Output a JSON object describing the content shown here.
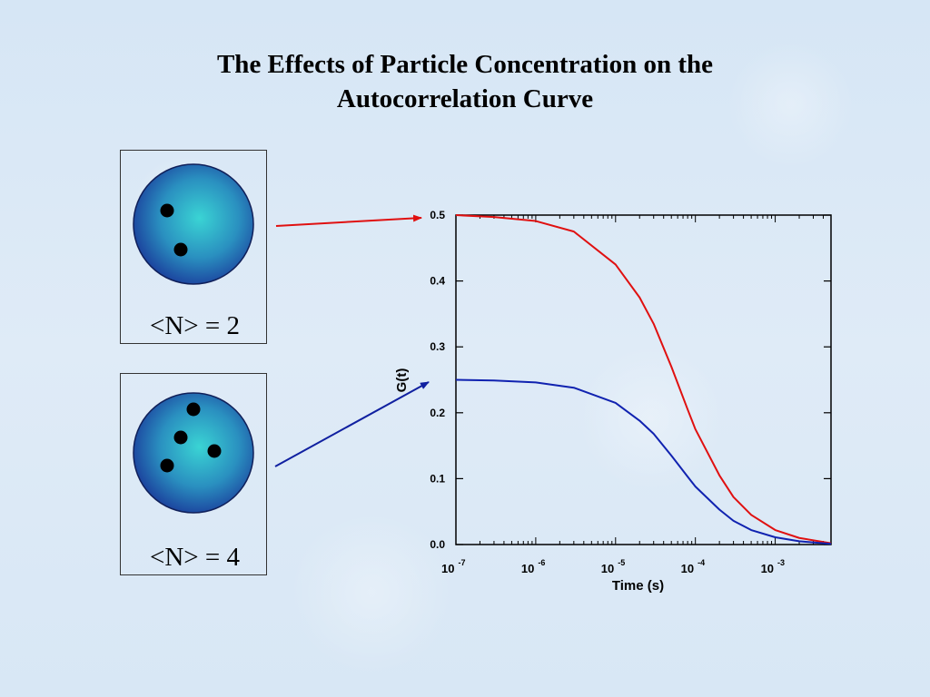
{
  "slide": {
    "title_line1": "The Effects of Particle Concentration on the",
    "title_line2": "Autocorrelation Curve"
  },
  "panels": [
    {
      "label": "<N> = 2",
      "particles": 2,
      "arrow_color": "#e01010"
    },
    {
      "label": "<N> = 4",
      "particles": 4,
      "arrow_color": "#1020a0"
    }
  ],
  "colors": {
    "red_curve": "#e01010",
    "blue_curve": "#1022b0",
    "sphere_center": "#3ad4d4",
    "sphere_edge": "#1a3a9a",
    "particle": "#000000"
  },
  "chart_data": {
    "type": "line",
    "xscale": "log",
    "xlim": [
      1e-07,
      0.005
    ],
    "ylim": [
      0,
      0.5
    ],
    "xlabel": "Time (s)",
    "ylabel": "G(t)",
    "x_tick_labels": [
      {
        "base": "10",
        "exp": "-7"
      },
      {
        "base": "10",
        "exp": "-6"
      },
      {
        "base": "10",
        "exp": "-5"
      },
      {
        "base": "10",
        "exp": "-4"
      },
      {
        "base": "10",
        "exp": "-3"
      }
    ],
    "y_tick_labels": [
      "0.0",
      "0.1",
      "0.2",
      "0.3",
      "0.4",
      "0.5"
    ],
    "series": [
      {
        "color": "#e01010",
        "x": [
          1e-07,
          3e-07,
          1e-06,
          3e-06,
          1e-05,
          2e-05,
          3e-05,
          5e-05,
          8e-05,
          0.0001,
          0.0002,
          0.0003,
          0.0005,
          0.001,
          0.002,
          0.005
        ],
        "y": [
          0.5,
          0.497,
          0.491,
          0.475,
          0.425,
          0.375,
          0.335,
          0.27,
          0.205,
          0.175,
          0.105,
          0.072,
          0.045,
          0.022,
          0.01,
          0.002
        ]
      },
      {
        "color": "#1022b0",
        "x": [
          1e-07,
          3e-07,
          1e-06,
          3e-06,
          1e-05,
          2e-05,
          3e-05,
          5e-05,
          8e-05,
          0.0001,
          0.0002,
          0.0003,
          0.0005,
          0.001,
          0.002,
          0.005
        ],
        "y": [
          0.25,
          0.249,
          0.246,
          0.238,
          0.215,
          0.188,
          0.168,
          0.135,
          0.103,
          0.088,
          0.053,
          0.036,
          0.022,
          0.011,
          0.005,
          0.001
        ]
      }
    ]
  }
}
